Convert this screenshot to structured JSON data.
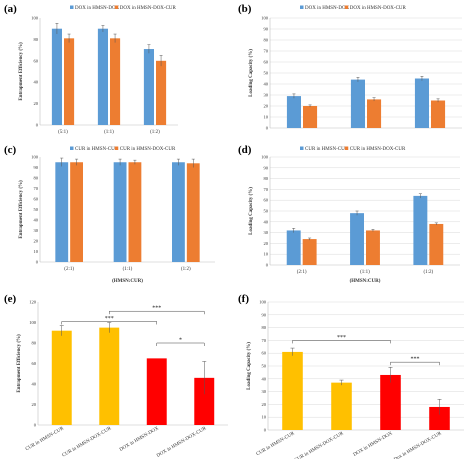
{
  "colors": {
    "blue": "#5B9BD5",
    "orange": "#ED7D31",
    "yellow": "#FFC000",
    "red": "#FF0000",
    "grid": "#D9D9D9",
    "axis": "#BFBFBF"
  },
  "chart_data": [
    {
      "panel": "(a)",
      "type": "bar",
      "ylim": [
        0,
        100
      ],
      "yticks": [
        0,
        20,
        40,
        60,
        80,
        100
      ],
      "ylabel": "Entrapment Efficiency (%)",
      "xlabel": "",
      "grid": false,
      "legend": "top",
      "categories": [
        "(5:1)",
        "(1:1)",
        "(1:2)"
      ],
      "series": [
        {
          "name": "DOX in HMSN-DOX",
          "color": "#5B9BD5",
          "values": [
            90,
            90,
            71
          ],
          "errors": [
            5,
            3,
            4
          ]
        },
        {
          "name": "DOX in HMSN-DOX-CUR",
          "color": "#ED7D31",
          "values": [
            81,
            81,
            60
          ],
          "errors": [
            4,
            4,
            5
          ]
        }
      ]
    },
    {
      "panel": "(b)",
      "type": "bar",
      "ylim": [
        0,
        100
      ],
      "yticks": [
        0,
        10,
        20,
        30,
        40,
        50,
        60,
        70,
        80,
        90,
        100
      ],
      "ylabel": "Loading Capacity (%)",
      "xlabel": "",
      "grid": true,
      "legend": "top",
      "categories": [
        "",
        "",
        ""
      ],
      "series": [
        {
          "name": "DOX in HMSN-DOX",
          "color": "#5B9BD5",
          "values": [
            29,
            44,
            45
          ],
          "errors": [
            2,
            2,
            2
          ]
        },
        {
          "name": "DOX in HMSN-DOX-CUR",
          "color": "#ED7D31",
          "values": [
            20,
            26,
            25
          ],
          "errors": [
            1,
            1.5,
            1.5
          ]
        }
      ]
    },
    {
      "panel": "(c)",
      "type": "bar",
      "ylim": [
        0,
        100
      ],
      "yticks": [
        0,
        10,
        20,
        30,
        40,
        50,
        60,
        70,
        80,
        90,
        100
      ],
      "ylabel": "Entrapment Efficiency (%)",
      "xlabel": "(HMSN:CUR)",
      "grid": false,
      "legend": "top",
      "categories": [
        "(2:1)",
        "(1:1)",
        "(1:2)"
      ],
      "series": [
        {
          "name": "CUR in HMSN-CUR",
          "color": "#5B9BD5",
          "values": [
            95,
            95,
            95
          ],
          "errors": [
            4,
            3,
            3
          ]
        },
        {
          "name": "CUR in HMSN-DOX-CUR",
          "color": "#ED7D31",
          "values": [
            95,
            95,
            94
          ],
          "errors": [
            3,
            2,
            4
          ]
        }
      ]
    },
    {
      "panel": "(d)",
      "type": "bar",
      "ylim": [
        0,
        100
      ],
      "yticks": [
        0,
        10,
        20,
        30,
        40,
        50,
        60,
        70,
        80,
        90,
        100
      ],
      "ylabel": "Loading Capacity (%)",
      "xlabel": "(HMSN:CUR)",
      "grid": true,
      "legend": "top",
      "categories": [
        "(2:1)",
        "(1:1)",
        "(1:2)"
      ],
      "series": [
        {
          "name": "CUR in HMSN-CUR",
          "color": "#5B9BD5",
          "values": [
            32,
            48,
            64
          ],
          "errors": [
            2,
            2,
            2
          ]
        },
        {
          "name": "CUR in HMSN-DOX-CUR",
          "color": "#ED7D31",
          "values": [
            24,
            32,
            38
          ],
          "errors": [
            1,
            1,
            1
          ]
        }
      ]
    },
    {
      "panel": "(e)",
      "type": "bar",
      "ylim": [
        0,
        120
      ],
      "yticks": [
        0,
        20,
        40,
        60,
        80,
        100,
        120
      ],
      "ylabel": "Entrapment Efficiency (%)",
      "xlabel": "",
      "grid": false,
      "categories": [
        "CUR in HMSN-CUR",
        "CUR in HMSN-DOX-CUR",
        "DOX in HMSN-DOX",
        "DOX in HMSN-DOX-CUR"
      ],
      "values": [
        92,
        95,
        65,
        46
      ],
      "errors": [
        5,
        5,
        0,
        16
      ],
      "colors": [
        "#FFC000",
        "#FFC000",
        "#FF0000",
        "#FF0000"
      ],
      "significance": [
        {
          "from": 0,
          "to": 2,
          "label": "***",
          "y": 101
        },
        {
          "from": 1,
          "to": 3,
          "label": "***",
          "y": 111
        },
        {
          "from": 2,
          "to": 3,
          "label": "*",
          "y": 80
        }
      ]
    },
    {
      "panel": "(f)",
      "type": "bar",
      "ylim": [
        0,
        100
      ],
      "yticks": [
        0,
        10,
        20,
        30,
        40,
        50,
        60,
        70,
        80,
        90,
        100
      ],
      "ylabel": "Loading Capacity (%)",
      "xlabel": "",
      "grid": true,
      "categories": [
        "CUR in HMSN-CUR",
        "CUR in HMSN-DOX-CUR",
        "DOX in HMSN-DOX",
        "Dox in HMSN-DOX-CUR"
      ],
      "values": [
        61,
        37,
        43,
        18
      ],
      "errors": [
        3,
        2,
        6,
        6
      ],
      "colors": [
        "#FFC000",
        "#FFC000",
        "#FF0000",
        "#FF0000"
      ],
      "significance": [
        {
          "from": 0,
          "to": 2,
          "label": "***",
          "y": 70
        },
        {
          "from": 2,
          "to": 3,
          "label": "***",
          "y": 53
        }
      ]
    }
  ]
}
